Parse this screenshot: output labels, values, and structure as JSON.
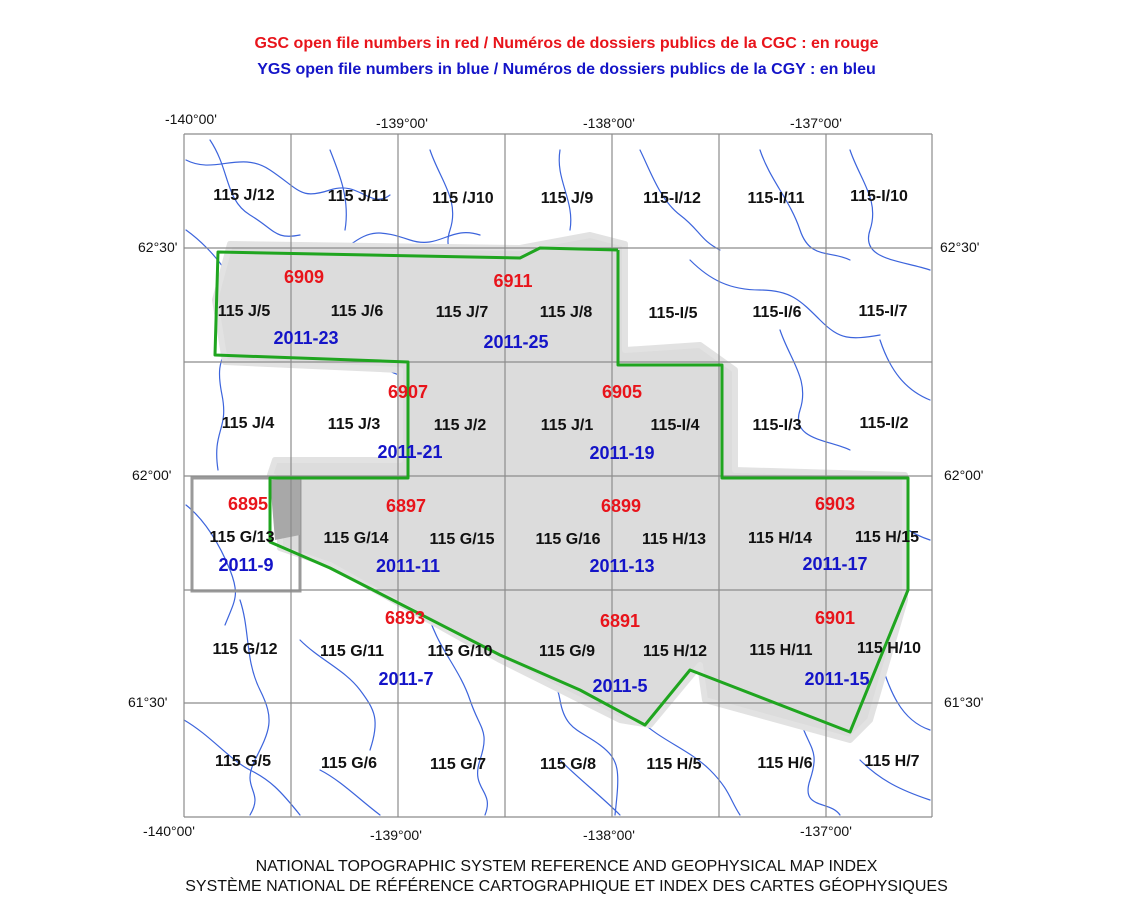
{
  "header": {
    "gsc_legend": "GSC open file numbers in red / Numéros de dossiers publics de la CGC : en rouge",
    "ygs_legend": "YGS open file numbers in blue / Numéros de dossiers publics de la CGY : en bleu"
  },
  "footer": {
    "line1": "NATIONAL TOPOGRAPHIC SYSTEM REFERENCE AND GEOPHYSICAL MAP INDEX",
    "line2": "SYSTÈME NATIONAL DE RÉFÉRENCE CARTOGRAPHIQUE ET INDEX DES CARTES GÉOPHYSIQUES"
  },
  "coords": {
    "lon_140": "-140°00'",
    "lon_139": "-139°00'",
    "lon_138": "-138°00'",
    "lon_137": "-137°00'",
    "lat_6230": "62°30'",
    "lat_6200": "62°00'",
    "lat_6130": "61°30'"
  },
  "colors": {
    "gsc": "#e8141b",
    "ygs": "#1414c8",
    "survey_outline": "#1fa51f",
    "coverage_fill": "#dcdcdc",
    "rivers": "#3c64dc",
    "grid": "#8c8c8c"
  },
  "sheets": {
    "r0": [
      "115 J/12",
      "115 J/11",
      "115 /J10",
      "115 J/9",
      "115-I/12",
      "115-I/11",
      "115-I/10"
    ],
    "r1": [
      "115 J/5",
      "115 J/6",
      "115 J/7",
      "115 J/8",
      "115-I/5",
      "115-I/6",
      "115-I/7"
    ],
    "r2": [
      "115 J/4",
      "115 J/3",
      "115 J/2",
      "115 J/1",
      "115-I/4",
      "115-I/3",
      "115-I/2"
    ],
    "r3": [
      "115 G/13",
      "115 G/14",
      "115 G/15",
      "115 G/16",
      "115 H/13",
      "115 H/14",
      "115 H/15"
    ],
    "r4": [
      "115 G/12",
      "115 G/11",
      "115 G/10",
      "115 G/9",
      "115 H/12",
      "115 H/11",
      "115 H/10"
    ],
    "r5": [
      "115 G/5",
      "115 G/6",
      "115 G/7",
      "115 G/8",
      "115 H/5",
      "115 H/6",
      "115 H/7"
    ]
  },
  "gsc_files": {
    "f6909": "6909",
    "f6911": "6911",
    "f6907": "6907",
    "f6905": "6905",
    "f6895": "6895",
    "f6897": "6897",
    "f6899": "6899",
    "f6903": "6903",
    "f6893": "6893",
    "f6891": "6891",
    "f6901": "6901"
  },
  "ygs_files": {
    "f2011_23": "2011-23",
    "f2011_25": "2011-25",
    "f2011_21": "2011-21",
    "f2011_19": "2011-19",
    "f2011_9": "2011-9",
    "f2011_11": "2011-11",
    "f2011_13": "2011-13",
    "f2011_17": "2011-17",
    "f2011_7": "2011-7",
    "f2011_5": "2011-5",
    "f2011_15": "2011-15"
  }
}
